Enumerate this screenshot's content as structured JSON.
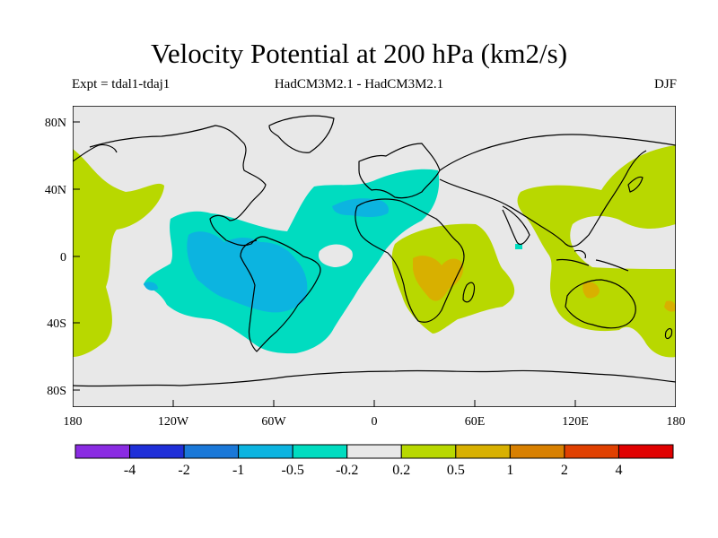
{
  "title": "Velocity Potential at 200 hPa (km2/s)",
  "subtitle_left": "Expt = tdal1-tdaj1",
  "subtitle_center": "HadCM3M2.1 - HadCM3M2.1",
  "subtitle_right": "DJF",
  "y_ticks": [
    "80N",
    "40N",
    "0",
    "40S",
    "80S"
  ],
  "x_ticks": [
    "180",
    "120W",
    "60W",
    "0",
    "60E",
    "120E",
    "180"
  ],
  "colorbar": {
    "colors": [
      "#8a2be2",
      "#1f2fd8",
      "#1a78d8",
      "#0cb4e0",
      "#00dcc0",
      "#e8e8e8",
      "#b8d800",
      "#d8b000",
      "#d88000",
      "#e04000",
      "#e00000"
    ],
    "labels": [
      "-4",
      "-2",
      "-1",
      "-0.5",
      "-0.2",
      "0.2",
      "0.5",
      "1",
      "2",
      "4"
    ]
  },
  "chart_data": {
    "type": "contour-map",
    "variable": "Velocity Potential at 200 hPa",
    "units": "km2/s",
    "season": "DJF",
    "levels": [
      -4,
      -2,
      -1,
      -0.5,
      -0.2,
      0.2,
      0.5,
      1,
      2,
      4
    ],
    "lon_range": [
      -180,
      180
    ],
    "lat_range": [
      -90,
      90
    ]
  }
}
